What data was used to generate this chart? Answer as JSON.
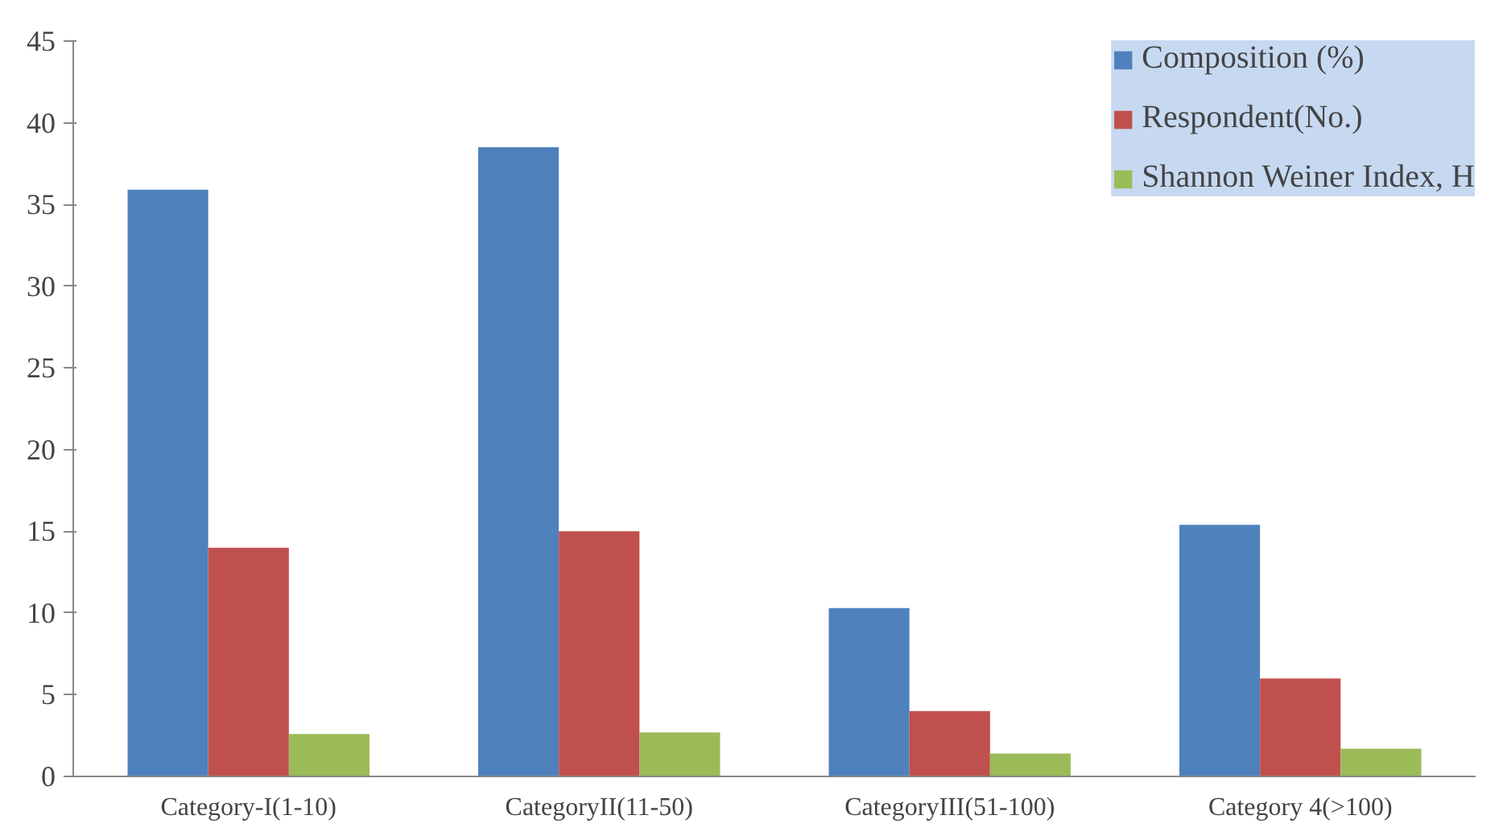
{
  "chart_data": {
    "type": "bar",
    "categories": [
      "Category-I(1-10)",
      "CategoryII(11-50)",
      "CategoryIII(51-100)",
      "Category 4(>100)"
    ],
    "series": [
      {
        "name": "Composition (%)",
        "color": "#4f81bd",
        "values": [
          35.9,
          38.5,
          10.3,
          15.4
        ]
      },
      {
        "name": "Respondent(No.)",
        "color": "#c0504d",
        "values": [
          14,
          15,
          4,
          6
        ]
      },
      {
        "name": "Shannon Weiner Index, H",
        "color": "#9bbb59",
        "values": [
          2.6,
          2.7,
          1.4,
          1.7
        ]
      }
    ],
    "ylim": [
      0,
      45
    ],
    "yticks": [
      0,
      5,
      10,
      15,
      20,
      25,
      30,
      35,
      40,
      45
    ],
    "grid": false,
    "legend": "top right"
  }
}
